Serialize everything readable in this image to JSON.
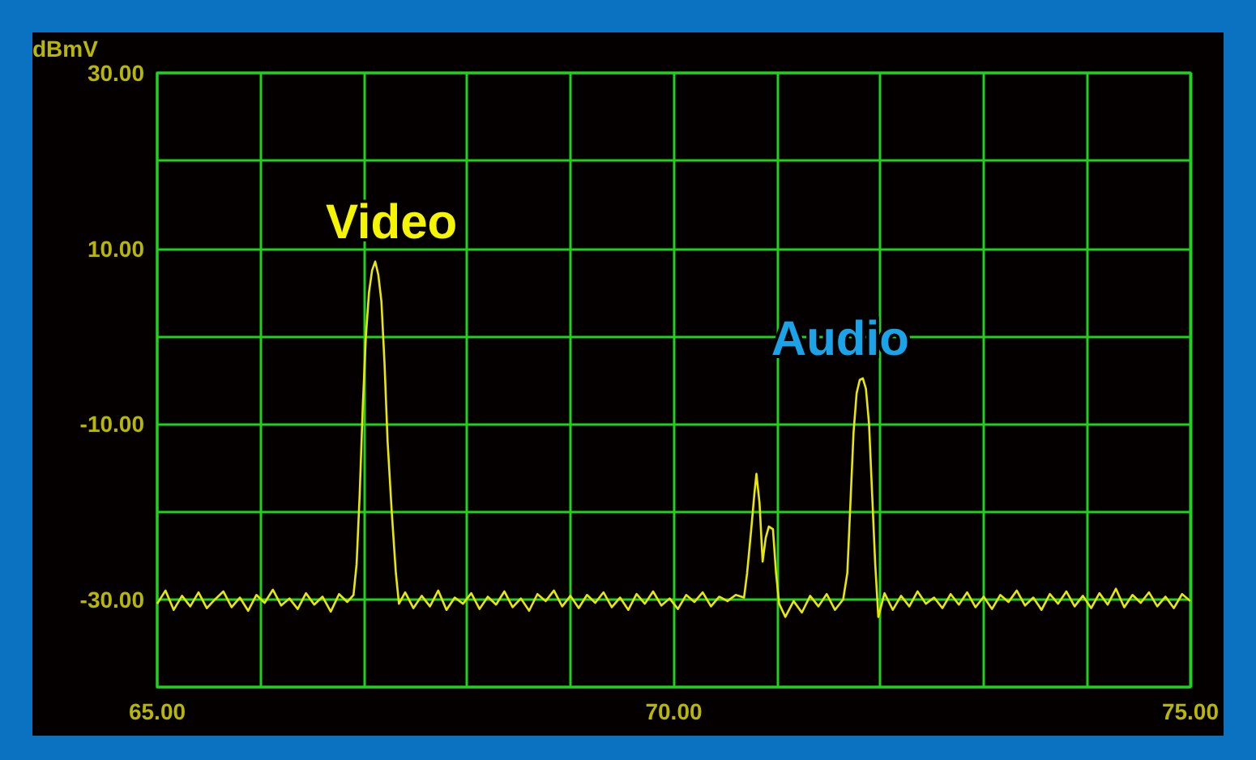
{
  "chart_data": {
    "type": "line",
    "ylabel": "dBmV",
    "grid": true,
    "marker": "none",
    "line_style": "solid",
    "xlim": [
      65,
      75
    ],
    "ylim": [
      -40,
      30
    ],
    "xticks": [
      {
        "value": 65,
        "label": "65.00"
      },
      {
        "value": 66,
        "label": null
      },
      {
        "value": 67,
        "label": null
      },
      {
        "value": 68,
        "label": null
      },
      {
        "value": 69,
        "label": null
      },
      {
        "value": 70,
        "label": "70.00"
      },
      {
        "value": 71,
        "label": null
      },
      {
        "value": 72,
        "label": null
      },
      {
        "value": 73,
        "label": null
      },
      {
        "value": 74,
        "label": null
      },
      {
        "value": 75,
        "label": "75.00"
      }
    ],
    "yticks": [
      {
        "value": -40,
        "label": null
      },
      {
        "value": -30,
        "label": "-30.00"
      },
      {
        "value": -20,
        "label": null
      },
      {
        "value": -10,
        "label": "-10.00"
      },
      {
        "value": 0,
        "label": null
      },
      {
        "value": 10,
        "label": "10.00"
      },
      {
        "value": 20,
        "label": null
      },
      {
        "value": 30,
        "label": "30.00"
      }
    ],
    "annotations": [
      {
        "text": "Video",
        "x": 67.11,
        "y": 8.5
      },
      {
        "text": "Audio",
        "x": 71.83,
        "y": -4.8
      }
    ],
    "series": [
      {
        "color": "#e8e800",
        "x": [
          65.0,
          65.08,
          65.16,
          65.24,
          65.32,
          65.4,
          65.48,
          65.56,
          65.64,
          65.72,
          65.8,
          65.88,
          65.96,
          66.04,
          66.12,
          66.2,
          66.28,
          66.36,
          66.44,
          66.52,
          66.6,
          66.68,
          66.76,
          66.84,
          66.9,
          66.93,
          66.96,
          66.99,
          67.02,
          67.05,
          67.08,
          67.11,
          67.14,
          67.17,
          67.2,
          67.23,
          67.27,
          67.31,
          67.34,
          67.4,
          67.48,
          67.56,
          67.64,
          67.72,
          67.8,
          67.88,
          67.96,
          68.04,
          68.12,
          68.2,
          68.28,
          68.36,
          68.44,
          68.52,
          68.6,
          68.68,
          68.76,
          68.84,
          68.92,
          69.0,
          69.08,
          69.16,
          69.24,
          69.32,
          69.4,
          69.48,
          69.56,
          69.64,
          69.72,
          69.8,
          69.88,
          69.96,
          70.04,
          70.12,
          70.2,
          70.28,
          70.36,
          70.44,
          70.52,
          70.6,
          70.68,
          70.71,
          70.75,
          70.78,
          70.8,
          70.83,
          70.86,
          70.89,
          70.92,
          70.96,
          70.99,
          71.02,
          71.08,
          71.16,
          71.24,
          71.32,
          71.4,
          71.48,
          71.56,
          71.64,
          71.68,
          71.71,
          71.74,
          71.77,
          71.8,
          71.83,
          71.86,
          71.89,
          71.92,
          71.95,
          71.98,
          72.04,
          72.12,
          72.2,
          72.28,
          72.36,
          72.44,
          72.52,
          72.6,
          72.68,
          72.76,
          72.84,
          72.92,
          73.0,
          73.08,
          73.16,
          73.24,
          73.32,
          73.4,
          73.48,
          73.56,
          73.64,
          73.72,
          73.8,
          73.88,
          73.96,
          74.04,
          74.12,
          74.2,
          74.28,
          74.36,
          74.44,
          74.52,
          74.6,
          74.68,
          74.76,
          74.84,
          74.92,
          75.0
        ],
        "values": [
          -30.5,
          -29.0,
          -31.2,
          -29.6,
          -30.8,
          -29.2,
          -31.0,
          -30.0,
          -29.1,
          -30.9,
          -29.8,
          -31.3,
          -29.5,
          -30.4,
          -28.9,
          -30.7,
          -29.9,
          -31.1,
          -29.3,
          -30.6,
          -29.7,
          -31.4,
          -29.4,
          -30.3,
          -29.5,
          -26,
          -18,
          -8,
          0,
          5,
          7.5,
          8.5,
          7,
          4,
          -3,
          -12,
          -20,
          -27,
          -30.5,
          -29.2,
          -31.0,
          -29.6,
          -30.8,
          -29.0,
          -31.2,
          -29.8,
          -30.5,
          -29.3,
          -31.1,
          -29.7,
          -30.6,
          -29.1,
          -30.9,
          -29.9,
          -31.3,
          -29.4,
          -30.2,
          -29.0,
          -30.8,
          -29.6,
          -31.0,
          -29.5,
          -30.4,
          -29.2,
          -30.9,
          -29.8,
          -31.2,
          -29.4,
          -30.5,
          -29.1,
          -30.7,
          -29.9,
          -31.1,
          -29.5,
          -30.3,
          -29.2,
          -30.8,
          -29.7,
          -30.2,
          -29.5,
          -29.8,
          -27,
          -22,
          -18,
          -15.7,
          -19,
          -25.7,
          -23,
          -21.7,
          -22,
          -27,
          -30.5,
          -32.0,
          -30.2,
          -31.5,
          -29.6,
          -30.8,
          -29.4,
          -31.2,
          -30.0,
          -27,
          -19,
          -11,
          -6.5,
          -5,
          -4.8,
          -6,
          -10,
          -18,
          -26,
          -32,
          -29.3,
          -31.2,
          -29.6,
          -30.8,
          -29.1,
          -30.5,
          -29.8,
          -31.0,
          -29.4,
          -30.6,
          -29.2,
          -30.9,
          -29.7,
          -31.1,
          -29.5,
          -30.3,
          -29.0,
          -30.7,
          -29.8,
          -31.2,
          -29.4,
          -30.5,
          -29.1,
          -30.8,
          -29.6,
          -31.0,
          -29.3,
          -30.6,
          -28.8,
          -30.9,
          -29.5,
          -30.4,
          -29.2,
          -30.8,
          -29.7,
          -31.0,
          -29.4,
          -30.2
        ]
      }
    ]
  }
}
